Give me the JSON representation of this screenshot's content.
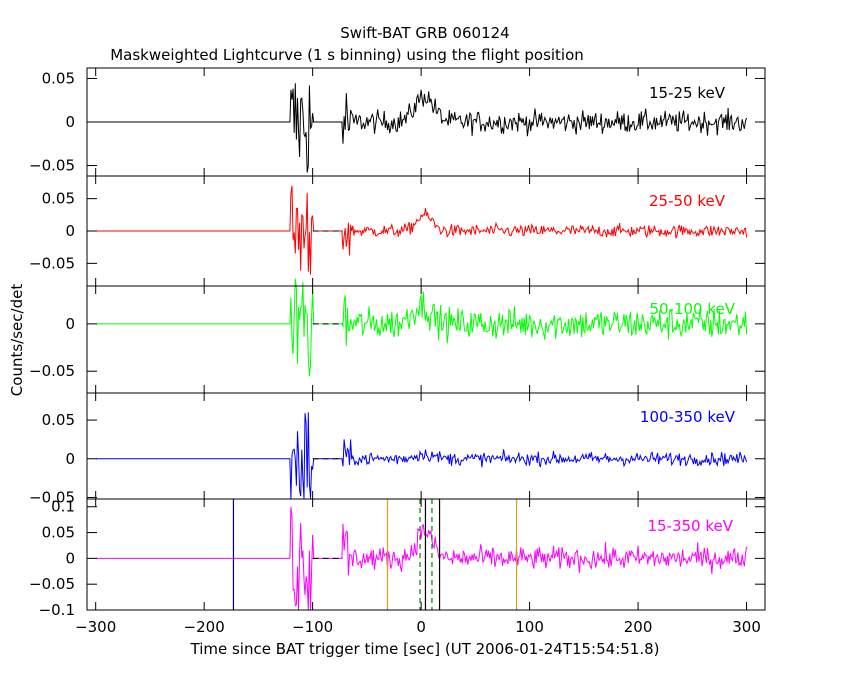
{
  "title": "Swift-BAT GRB 060124",
  "subtitle": "Maskweighted Lightcurve (1 s binning) using the flight position",
  "ylabel": "Counts/sec/det",
  "xlabel": "Time since BAT trigger time [sec] (UT 2006-01-24T15:54:51.8)",
  "chart_data": [
    {
      "type": "line",
      "band": "15-25 keV",
      "color": "#000000",
      "xlim": [
        -308,
        317
      ],
      "ylim": [
        -0.062,
        0.062
      ],
      "yticks": [
        -0.05,
        0,
        0.05
      ],
      "ytick_labels": [
        "−0.05",
        "0",
        "0.05"
      ],
      "quiet_before": -120,
      "burst_windows": [
        [
          -120,
          -100,
          0.058
        ],
        [
          -72,
          -65,
          0.04
        ]
      ],
      "pulse": {
        "center": 3,
        "width": 12,
        "peak": 0.03
      },
      "noise": 0.009
    },
    {
      "type": "line",
      "band": "25-50 keV",
      "color": "#ff0000",
      "xlim": [
        -308,
        317
      ],
      "ylim": [
        -0.085,
        0.085
      ],
      "yticks": [
        -0.05,
        0,
        0.05
      ],
      "ytick_labels": [
        "−0.05",
        "0",
        "0.05"
      ],
      "quiet_before": -120,
      "burst_windows": [
        [
          -120,
          -100,
          0.07
        ],
        [
          -72,
          -65,
          0.04
        ]
      ],
      "pulse": {
        "center": 3,
        "width": 10,
        "peak": 0.025
      },
      "noise": 0.007
    },
    {
      "type": "line",
      "band": "50-100 keV",
      "color": "#00ff00",
      "xlim": [
        -308,
        317
      ],
      "ylim": [
        -0.073,
        0.04
      ],
      "yticks": [
        -0.05,
        0
      ],
      "ytick_labels": [
        "−0.05",
        "0"
      ],
      "quiet_before": -120,
      "burst_windows": [
        [
          -120,
          -100,
          0.055
        ],
        [
          -72,
          -65,
          0.04
        ]
      ],
      "pulse": {
        "center": 0,
        "width": 12,
        "peak": 0.02
      },
      "noise": 0.012
    },
    {
      "type": "line",
      "band": "100-350 keV",
      "color": "#0000ff",
      "xlim": [
        -308,
        317
      ],
      "ylim": [
        -0.052,
        0.085
      ],
      "yticks": [
        -0.05,
        0,
        0.05
      ],
      "ytick_labels": [
        "−0.05",
        "0",
        "0.05"
      ],
      "quiet_before": -120,
      "burst_windows": [
        [
          -120,
          -100,
          0.06
        ],
        [
          -72,
          -65,
          0.025
        ]
      ],
      "pulse": {
        "center": 3,
        "width": 12,
        "peak": 0.006
      },
      "noise": 0.006
    },
    {
      "type": "line",
      "band": "15-350 keV",
      "color": "#ff00ff",
      "xlim": [
        -308,
        317
      ],
      "ylim": [
        -0.1,
        0.115
      ],
      "yticks": [
        -0.1,
        -0.05,
        0,
        0.05,
        0.1
      ],
      "ytick_labels": [
        "−0.1",
        "−0.05",
        "0",
        "0.05",
        "0.1"
      ],
      "quiet_before": -120,
      "burst_windows": [
        [
          -120,
          -100,
          0.1
        ],
        [
          -72,
          -65,
          0.08
        ]
      ],
      "pulse": {
        "center": 3,
        "width": 10,
        "peak": 0.055
      },
      "noise": 0.016,
      "markers": [
        {
          "x": -173,
          "color": "#000080",
          "style": "solid"
        },
        {
          "x": -31,
          "color": "#d4a017",
          "style": "solid"
        },
        {
          "x": -1,
          "color": "#008000",
          "style": "dashed"
        },
        {
          "x": 10,
          "color": "#008000",
          "style": "dashed"
        },
        {
          "x": 4,
          "color": "#000000",
          "style": "solid"
        },
        {
          "x": 17,
          "color": "#000000",
          "style": "solid"
        },
        {
          "x": 88,
          "color": "#d4a017",
          "style": "solid"
        }
      ]
    }
  ],
  "xticks": [
    -300,
    -200,
    -100,
    0,
    100,
    200,
    300
  ],
  "xtick_labels": [
    "−300",
    "−200",
    "−100",
    "0",
    "100",
    "200",
    "300"
  ]
}
